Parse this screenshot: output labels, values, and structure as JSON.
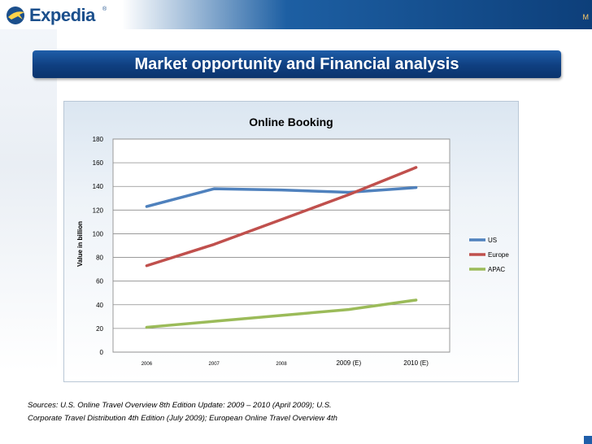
{
  "header": {
    "logo_text": "Expedia",
    "logo_tm": "®",
    "corner_text": "M"
  },
  "slide": {
    "title": "Market opportunity and Financial analysis"
  },
  "chart_data": {
    "type": "line",
    "title": "Online Booking",
    "ylabel": "Value in billion",
    "xlabel": "",
    "categories": [
      "2006",
      "2007",
      "2008",
      "2009 (E)",
      "2010 (E)"
    ],
    "ylim": [
      0,
      180
    ],
    "yticks": [
      0,
      20,
      40,
      60,
      80,
      100,
      120,
      140,
      160,
      180
    ],
    "grid": true,
    "legend_position": "right",
    "series": [
      {
        "name": "US",
        "color": "#4f81bd",
        "values": [
          123,
          138,
          137,
          135,
          139
        ]
      },
      {
        "name": "Europe",
        "color": "#c0504d",
        "values": [
          73,
          91,
          112,
          133,
          156
        ]
      },
      {
        "name": "APAC",
        "color": "#9bbb59",
        "values": [
          21,
          26,
          31,
          36,
          44
        ]
      }
    ]
  },
  "footnote": {
    "line1": "Sources: U.S. Online Travel Overview 8th Edition Update: 2009 – 2010 (April 2009); U.S.",
    "line2": "Corporate Travel Distribution 4th Edition (July 2009); European Online Travel Overview 4th"
  }
}
